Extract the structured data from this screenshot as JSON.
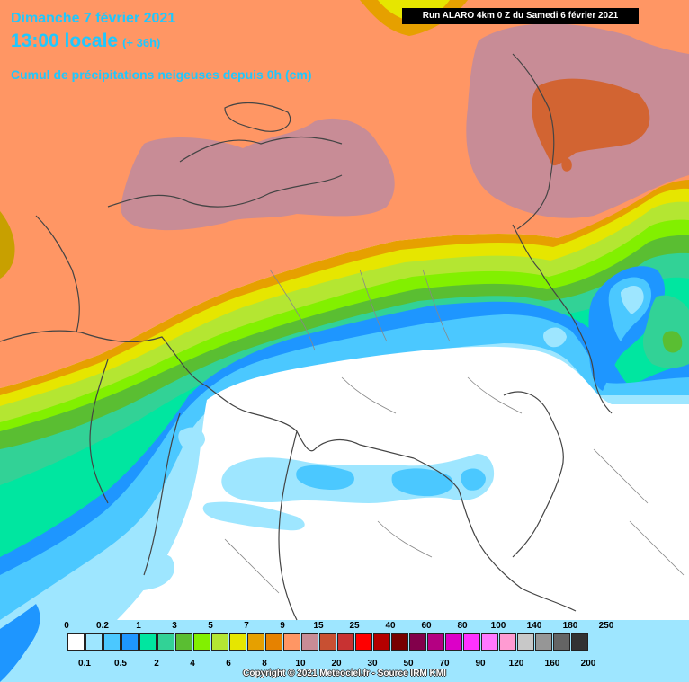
{
  "header": {
    "date": "Dimanche 7 février 2021",
    "time": "13:00 locale",
    "lead": "(+ 36h)",
    "variable": "Cumul de précipitations neigeuses depuis 0h (cm)"
  },
  "run_info": "Run ALARO 4km 0 Z du Samedi 6 février 2021",
  "legend": {
    "colors": [
      "#ffffff",
      "#9ee6ff",
      "#4bc8ff",
      "#1e96ff",
      "#00e6a0",
      "#32d296",
      "#5abe32",
      "#82f000",
      "#b4e632",
      "#e6e600",
      "#e6a000",
      "#e68200",
      "#ff9664",
      "#c88c96",
      "#c85032",
      "#c83232",
      "#ff0000",
      "#b40000",
      "#780000",
      "#82004b",
      "#b40082",
      "#dc00c8",
      "#ff32ff",
      "#ff78ff",
      "#ff9bd2",
      "#c8c8c8",
      "#969696",
      "#646464",
      "#323232"
    ],
    "top_labels": [
      "0",
      "0.2",
      "1",
      "3",
      "5",
      "7",
      "9",
      "15",
      "25",
      "40",
      "60",
      "80",
      "100",
      "140",
      "180",
      "250"
    ],
    "bottom_labels": [
      "0.1",
      "0.5",
      "2",
      "4",
      "6",
      "8",
      "10",
      "20",
      "30",
      "50",
      "70",
      "90",
      "120",
      "160",
      "200"
    ],
    "copyright": "Copyright © 2021 Meteociel.fr - Source IRM KMI"
  }
}
